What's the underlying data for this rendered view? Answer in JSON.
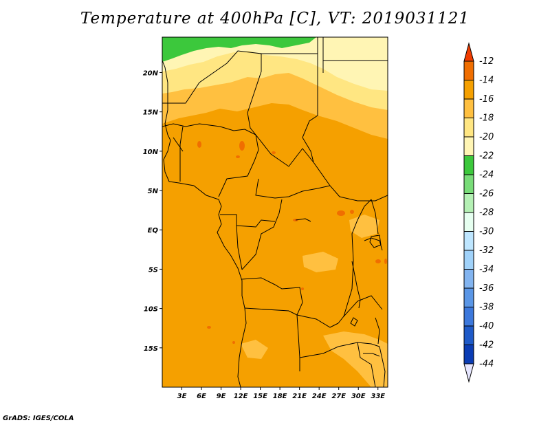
{
  "title": "Temperature at 400hPa [C], VT: 2019031121",
  "credit": "GrADS: IGES/COLA",
  "map": {
    "lon_range": [
      0,
      34.5
    ],
    "lat_range": [
      -20,
      24.5
    ],
    "lat_labels": [
      "20N",
      "15N",
      "10N",
      "5N",
      "EQ",
      "5S",
      "10S",
      "15S"
    ],
    "lon_labels": [
      "3E",
      "6E",
      "9E",
      "12E",
      "15E",
      "18E",
      "21E",
      "24E",
      "27E",
      "30E",
      "33E"
    ],
    "fill_colors": {
      "-24_-22": "#3cc83c",
      "-22_-20": "#fff5b4",
      "-20_-18": "#ffe682",
      "-18_-16": "#ffc040",
      "-16_-14": "#f5a000",
      "-14_-12": "#f06e00"
    }
  },
  "colorbar": {
    "labels": [
      "-12",
      "-14",
      "-16",
      "-18",
      "-20",
      "-22",
      "-24",
      "-26",
      "-28",
      "-30",
      "-32",
      "-34",
      "-36",
      "-38",
      "-40",
      "-42",
      "-44"
    ],
    "colors": [
      "#f06e00",
      "#f5a000",
      "#ffc040",
      "#ffe682",
      "#fff5b4",
      "#3cc83c",
      "#78dc78",
      "#b4f0b4",
      "#e6fff0",
      "#bee6ff",
      "#a0d2fa",
      "#82b4f0",
      "#5a96e6",
      "#3c78dc",
      "#1e5ac8",
      "#0a3cb4"
    ],
    "top_cap_color": "#f03c00",
    "bottom_cap_color": "#0a0a78",
    "upper_end_color": "#f03c00",
    "lower_end_color": "#e6e6ff"
  }
}
